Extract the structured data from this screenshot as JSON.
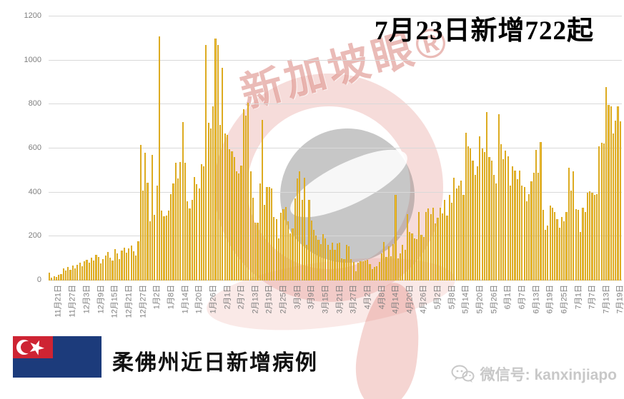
{
  "title": "7月23日新增722起",
  "watermark": {
    "brand": "新加坡眼®"
  },
  "footer": {
    "caption": "柔佛州近日新增病例",
    "wechat_label": "微信号: kanxinjiapo",
    "flag": "johor-flag"
  },
  "colors": {
    "bar_gold_center": "#FFD75E",
    "bar_gold_edge": "#9A7100",
    "gridline": "#D9D9D9",
    "axis_text": "#7F7F7F",
    "watermark_red": "#CD5C54",
    "flag_blue": "#1C3B7B",
    "flag_red": "#CE2433",
    "wechat_gray": "#C8C8C8"
  },
  "chart_data": {
    "type": "bar",
    "title": "7月23日新增722起",
    "xlabel": "",
    "ylabel": "",
    "ylim": [
      0,
      1200
    ],
    "yticks": [
      0,
      200,
      400,
      600,
      800,
      1000,
      1200
    ],
    "grid": "horizontal",
    "legend": "none",
    "x_start": "11月21日",
    "x_end": "7月23日",
    "tick_every_n_bars": 6,
    "tick_labels": [
      "11月21日",
      "11月27日",
      "12月3日",
      "12月9日",
      "12月15日",
      "12月21日",
      "12月27日",
      "1月2日",
      "1月8日",
      "1月14日",
      "1月20日",
      "1月26日",
      "2月1日",
      "2月7日",
      "2月13日",
      "2月19日",
      "2月25日",
      "3月3日",
      "3月9日",
      "3月15日",
      "3月21日",
      "3月27日",
      "4月2日",
      "4月8日",
      "4月14日",
      "4月20日",
      "4月26日",
      "5月2日",
      "5月8日",
      "5月14日",
      "5月20日",
      "5月26日",
      "6月1日",
      "6月7日",
      "6月13日",
      "6月19日",
      "6月25日",
      "7月1日",
      "7月7日",
      "7月13日",
      "7月19日"
    ],
    "values": [
      35,
      12,
      18,
      15,
      25,
      30,
      55,
      45,
      62,
      50,
      68,
      55,
      72,
      80,
      65,
      88,
      95,
      82,
      105,
      92,
      118,
      108,
      78,
      98,
      114,
      129,
      105,
      90,
      142,
      124,
      98,
      136,
      150,
      127,
      147,
      160,
      134,
      115,
      180,
      615,
      410,
      582,
      445,
      270,
      571,
      300,
      430,
      1110,
      318,
      291,
      296,
      318,
      393,
      442,
      536,
      464,
      539,
      721,
      534,
      361,
      328,
      366,
      469,
      437,
      420,
      528,
      518,
      1070,
      718,
      690,
      790,
      1100,
      1070,
      707,
      966,
      669,
      663,
      598,
      588,
      561,
      496,
      485,
      523,
      777,
      750,
      806,
      496,
      377,
      264,
      264,
      442,
      731,
      345,
      426,
      426,
      420,
      290,
      280,
      193,
      307,
      323,
      334,
      269,
      215,
      237,
      372,
      464,
      496,
      366,
      466,
      161,
      366,
      271,
      230,
      205,
      185,
      166,
      210,
      190,
      161,
      139,
      172,
      139,
      169,
      172,
      102,
      96,
      163,
      156,
      98,
      85,
      42,
      82,
      89,
      89,
      91,
      93,
      75,
      53,
      61,
      66,
      85,
      123,
      174,
      107,
      156,
      109,
      166,
      388,
      102,
      123,
      161,
      139,
      301,
      220,
      213,
      193,
      188,
      312,
      206,
      199,
      310,
      328,
      301,
      330,
      260,
      285,
      330,
      305,
      366,
      295,
      390,
      355,
      466,
      420,
      430,
      455,
      390,
      670,
      610,
      600,
      545,
      480,
      520,
      655,
      600,
      585,
      765,
      560,
      545,
      480,
      440,
      755,
      620,
      550,
      590,
      565,
      430,
      520,
      500,
      460,
      501,
      430,
      426,
      360,
      393,
      450,
      490,
      593,
      490,
      628,
      320,
      230,
      250,
      340,
      330,
      310,
      280,
      240,
      290,
      270,
      310,
      512,
      410,
      495,
      325,
      320,
      220,
      330,
      310,
      400,
      405,
      400,
      390,
      393,
      610,
      626,
      624,
      879,
      798,
      792,
      669,
      728,
      790,
      722
    ]
  }
}
